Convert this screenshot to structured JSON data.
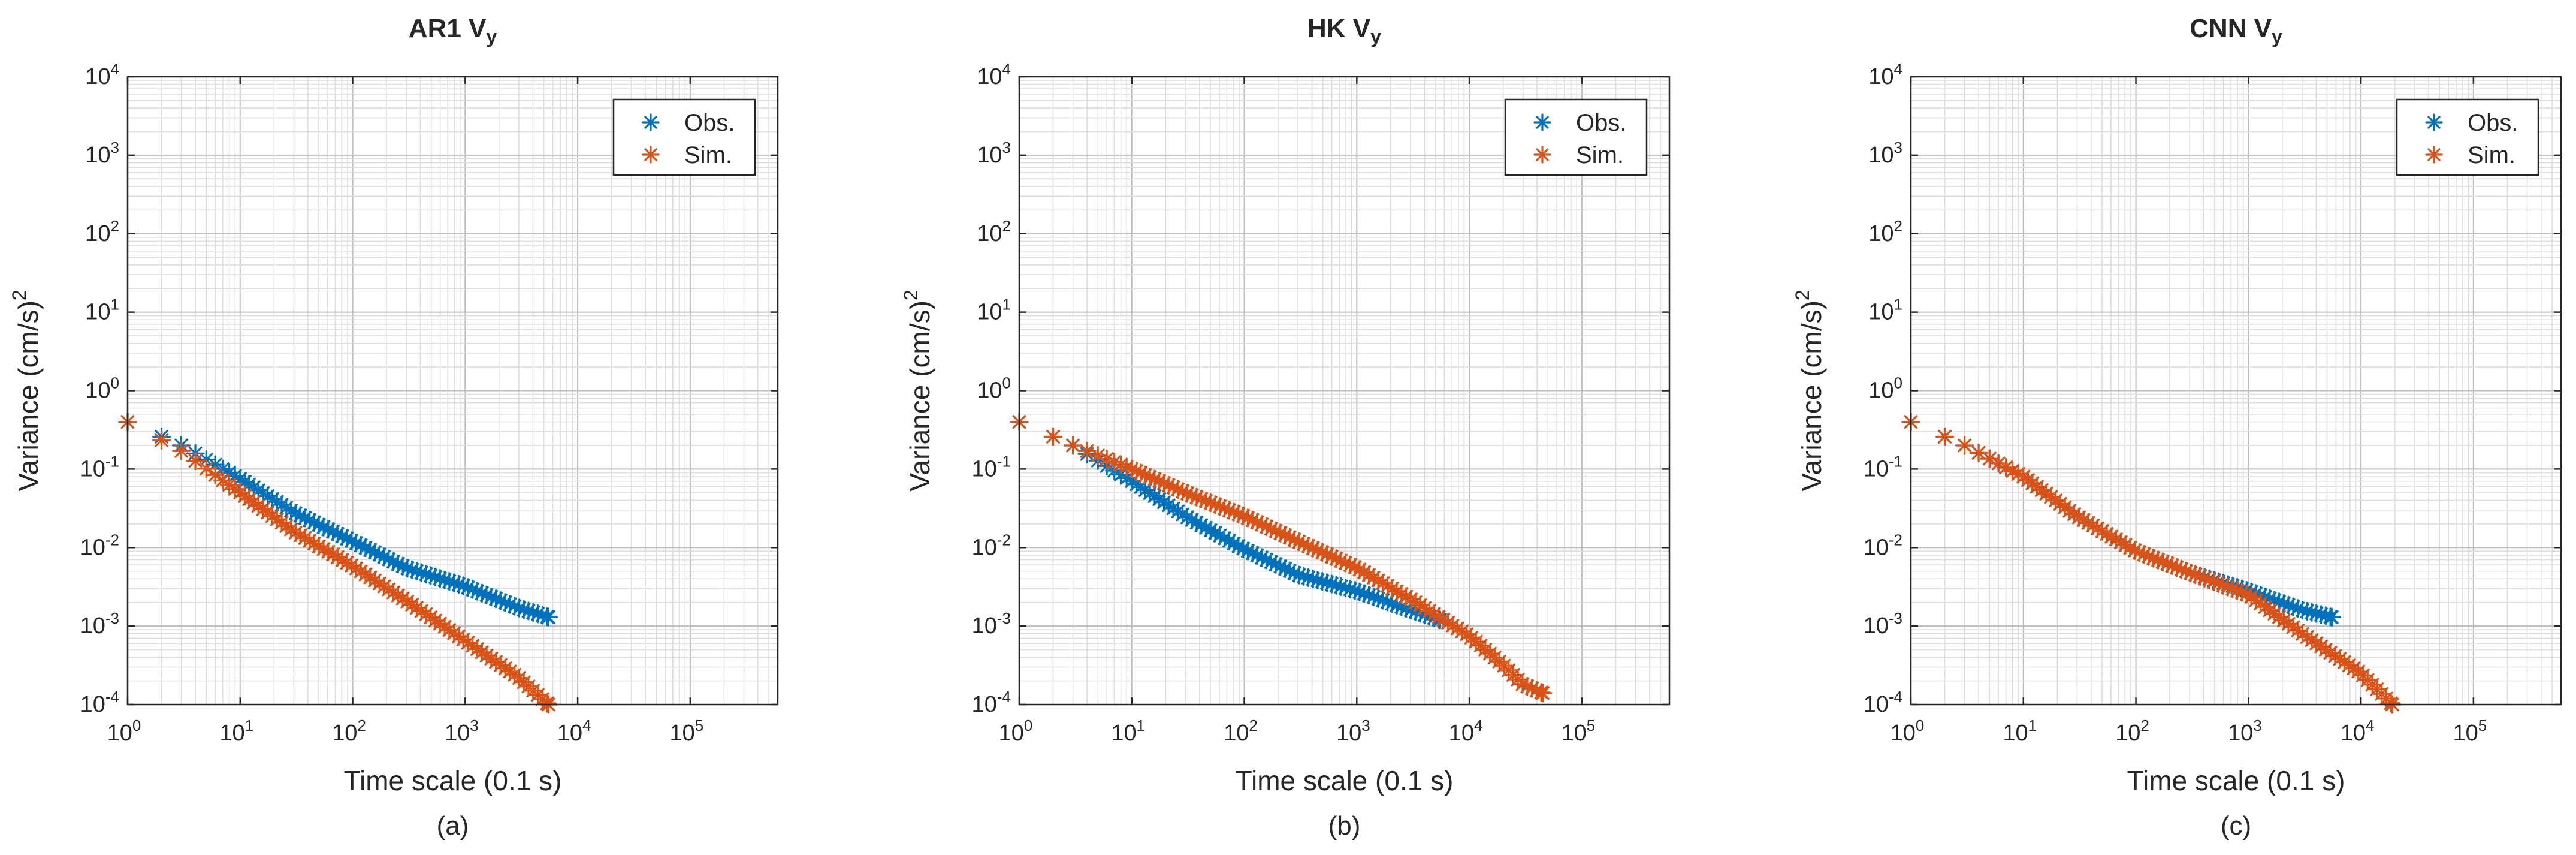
{
  "colors": {
    "obs": "#0072BD",
    "sim": "#D95319"
  },
  "chart_data": [
    {
      "type": "scatter",
      "marker": "asterisk",
      "title": "AR1 V",
      "title_subscript": "y",
      "xlabel": "Time scale (0.1 s)",
      "ylabel": "Variance (cm/s)",
      "ylabel_superscript": "2",
      "panel_label": "(a)",
      "xscale": "log",
      "yscale": "log",
      "xlim": [
        1,
        600000
      ],
      "ylim": [
        0.0001,
        10000
      ],
      "grid": "major and minor",
      "legend_position": "top-right",
      "x_ticks": [
        {
          "base": "10",
          "exp": "0"
        },
        {
          "base": "10",
          "exp": "1"
        },
        {
          "base": "10",
          "exp": "2"
        },
        {
          "base": "10",
          "exp": "3"
        },
        {
          "base": "10",
          "exp": "4"
        },
        {
          "base": "10",
          "exp": "5"
        }
      ],
      "y_ticks": [
        {
          "base": "10",
          "exp": "-4"
        },
        {
          "base": "10",
          "exp": "-3"
        },
        {
          "base": "10",
          "exp": "-2"
        },
        {
          "base": "10",
          "exp": "-1"
        },
        {
          "base": "10",
          "exp": "0"
        },
        {
          "base": "10",
          "exp": "1"
        },
        {
          "base": "10",
          "exp": "2"
        },
        {
          "base": "10",
          "exp": "3"
        },
        {
          "base": "10",
          "exp": "4"
        }
      ],
      "series": [
        {
          "name": "Obs.",
          "color": "#0072BD",
          "x_range": [
            1,
            5500
          ],
          "anchors": [
            [
              1,
              0.4
            ],
            [
              3,
              0.2
            ],
            [
              10,
              0.075
            ],
            [
              30,
              0.028
            ],
            [
              100,
              0.012
            ],
            [
              300,
              0.0055
            ],
            [
              1000,
              0.0032
            ],
            [
              3000,
              0.0017
            ],
            [
              5500,
              0.0013
            ]
          ]
        },
        {
          "name": "Sim.",
          "color": "#D95319",
          "x_range": [
            1,
            5500
          ],
          "anchors": [
            [
              1,
              0.4
            ],
            [
              3,
              0.17
            ],
            [
              10,
              0.05
            ],
            [
              30,
              0.016
            ],
            [
              100,
              0.0058
            ],
            [
              300,
              0.0021
            ],
            [
              1000,
              0.00065
            ],
            [
              3000,
              0.00022
            ],
            [
              5500,
              0.0001
            ]
          ]
        }
      ]
    },
    {
      "type": "scatter",
      "marker": "asterisk",
      "title": "HK V",
      "title_subscript": "y",
      "xlabel": "Time scale (0.1 s)",
      "ylabel": "Variance (cm/s)",
      "ylabel_superscript": "2",
      "panel_label": "(b)",
      "xscale": "log",
      "yscale": "log",
      "xlim": [
        1,
        600000
      ],
      "ylim": [
        0.0001,
        10000
      ],
      "grid": "major and minor",
      "legend_position": "top-right",
      "x_ticks": [
        {
          "base": "10",
          "exp": "0"
        },
        {
          "base": "10",
          "exp": "1"
        },
        {
          "base": "10",
          "exp": "2"
        },
        {
          "base": "10",
          "exp": "3"
        },
        {
          "base": "10",
          "exp": "4"
        },
        {
          "base": "10",
          "exp": "5"
        }
      ],
      "y_ticks": [
        {
          "base": "10",
          "exp": "-4"
        },
        {
          "base": "10",
          "exp": "-3"
        },
        {
          "base": "10",
          "exp": "-2"
        },
        {
          "base": "10",
          "exp": "-1"
        },
        {
          "base": "10",
          "exp": "0"
        },
        {
          "base": "10",
          "exp": "1"
        },
        {
          "base": "10",
          "exp": "2"
        },
        {
          "base": "10",
          "exp": "3"
        },
        {
          "base": "10",
          "exp": "4"
        }
      ],
      "series": [
        {
          "name": "Obs.",
          "color": "#0072BD",
          "x_range": [
            1,
            5500
          ],
          "anchors": [
            [
              1,
              0.4
            ],
            [
              3,
              0.2
            ],
            [
              10,
              0.07
            ],
            [
              30,
              0.025
            ],
            [
              100,
              0.0095
            ],
            [
              300,
              0.0045
            ],
            [
              1000,
              0.0028
            ],
            [
              3000,
              0.0016
            ],
            [
              5500,
              0.0012
            ]
          ]
        },
        {
          "name": "Sim.",
          "color": "#D95319",
          "x_range": [
            1,
            45000
          ],
          "anchors": [
            [
              1,
              0.4
            ],
            [
              3,
              0.2
            ],
            [
              10,
              0.1
            ],
            [
              30,
              0.05
            ],
            [
              100,
              0.025
            ],
            [
              300,
              0.012
            ],
            [
              1000,
              0.0055
            ],
            [
              3000,
              0.0022
            ],
            [
              10000,
              0.00075
            ],
            [
              20000,
              0.00032
            ],
            [
              30000,
              0.00018
            ],
            [
              45000,
              0.00014
            ]
          ]
        }
      ]
    },
    {
      "type": "scatter",
      "marker": "asterisk",
      "title": "CNN V",
      "title_subscript": "y",
      "xlabel": "Time scale (0.1 s)",
      "ylabel": "Variance (cm/s)",
      "ylabel_superscript": "2",
      "panel_label": "(c)",
      "xscale": "log",
      "yscale": "log",
      "xlim": [
        1,
        600000
      ],
      "ylim": [
        0.0001,
        10000
      ],
      "grid": "major and minor",
      "legend_position": "top-right",
      "x_ticks": [
        {
          "base": "10",
          "exp": "0"
        },
        {
          "base": "10",
          "exp": "1"
        },
        {
          "base": "10",
          "exp": "2"
        },
        {
          "base": "10",
          "exp": "3"
        },
        {
          "base": "10",
          "exp": "4"
        },
        {
          "base": "10",
          "exp": "5"
        }
      ],
      "y_ticks": [
        {
          "base": "10",
          "exp": "-4"
        },
        {
          "base": "10",
          "exp": "-3"
        },
        {
          "base": "10",
          "exp": "-2"
        },
        {
          "base": "10",
          "exp": "-1"
        },
        {
          "base": "10",
          "exp": "0"
        },
        {
          "base": "10",
          "exp": "1"
        },
        {
          "base": "10",
          "exp": "2"
        },
        {
          "base": "10",
          "exp": "3"
        },
        {
          "base": "10",
          "exp": "4"
        }
      ],
      "series": [
        {
          "name": "Obs.",
          "color": "#0072BD",
          "x_range": [
            1,
            5500
          ],
          "anchors": [
            [
              1,
              0.4
            ],
            [
              3,
              0.2
            ],
            [
              10,
              0.08
            ],
            [
              30,
              0.025
            ],
            [
              100,
              0.009
            ],
            [
              300,
              0.0048
            ],
            [
              1000,
              0.0028
            ],
            [
              3000,
              0.0016
            ],
            [
              5500,
              0.0013
            ]
          ]
        },
        {
          "name": "Sim.",
          "color": "#D95319",
          "x_range": [
            1,
            19000
          ],
          "anchors": [
            [
              1,
              0.4
            ],
            [
              3,
              0.2
            ],
            [
              10,
              0.08
            ],
            [
              30,
              0.025
            ],
            [
              100,
              0.009
            ],
            [
              300,
              0.0048
            ],
            [
              1000,
              0.0025
            ],
            [
              3000,
              0.0008
            ],
            [
              10000,
              0.00025
            ],
            [
              19000,
              0.0001
            ]
          ]
        }
      ]
    }
  ]
}
